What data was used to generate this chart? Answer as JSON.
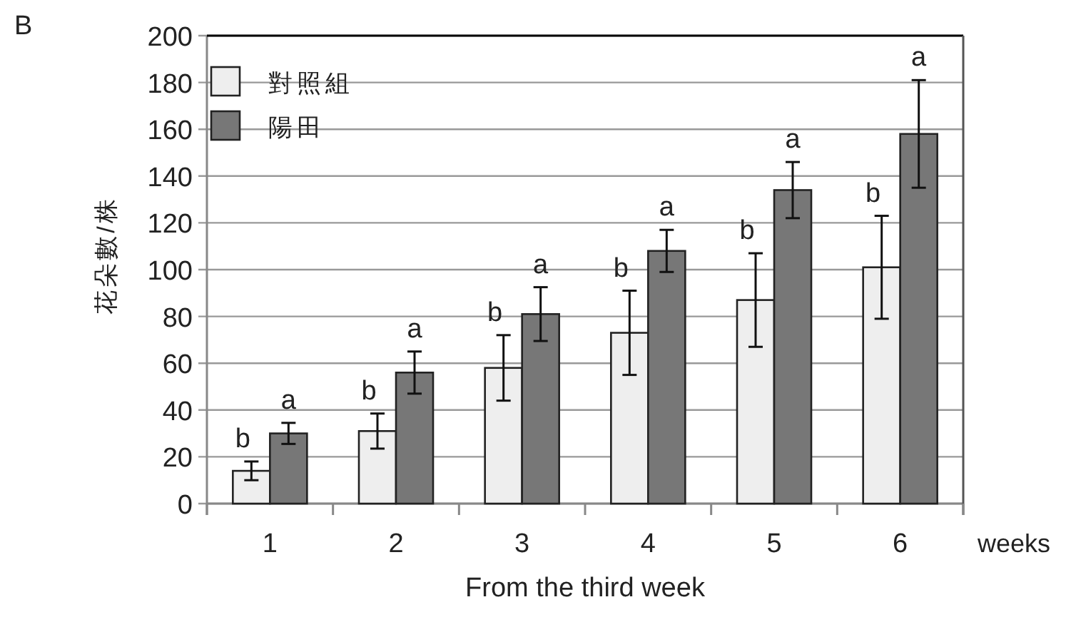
{
  "chart_data": {
    "type": "bar",
    "xlabel": "From the third week",
    "ylabel": "花朵數/株",
    "annotations": [
      "B",
      "weeks"
    ],
    "categories": [
      "1",
      "2",
      "3",
      "4",
      "5",
      "6"
    ],
    "series": [
      {
        "name": "對照組",
        "color": "#eeeeee",
        "values": [
          14,
          31,
          58,
          73,
          87,
          101
        ],
        "errors": [
          4,
          7.5,
          14,
          18,
          20,
          22
        ],
        "value_labels": [
          "b",
          "b",
          "b",
          "b",
          "b",
          "b"
        ]
      },
      {
        "name": "陽田",
        "color": "#777777",
        "values": [
          30,
          56,
          81,
          108,
          134,
          158
        ],
        "errors": [
          4.5,
          9,
          11.5,
          9,
          12,
          23
        ],
        "value_labels": [
          "a",
          "a",
          "a",
          "a",
          "a",
          "a"
        ]
      }
    ],
    "ylim": [
      0,
      200
    ],
    "yticks": [
      0,
      20,
      40,
      60,
      80,
      100,
      120,
      140,
      160,
      180,
      200
    ],
    "grid": "y",
    "legend": "top left"
  }
}
